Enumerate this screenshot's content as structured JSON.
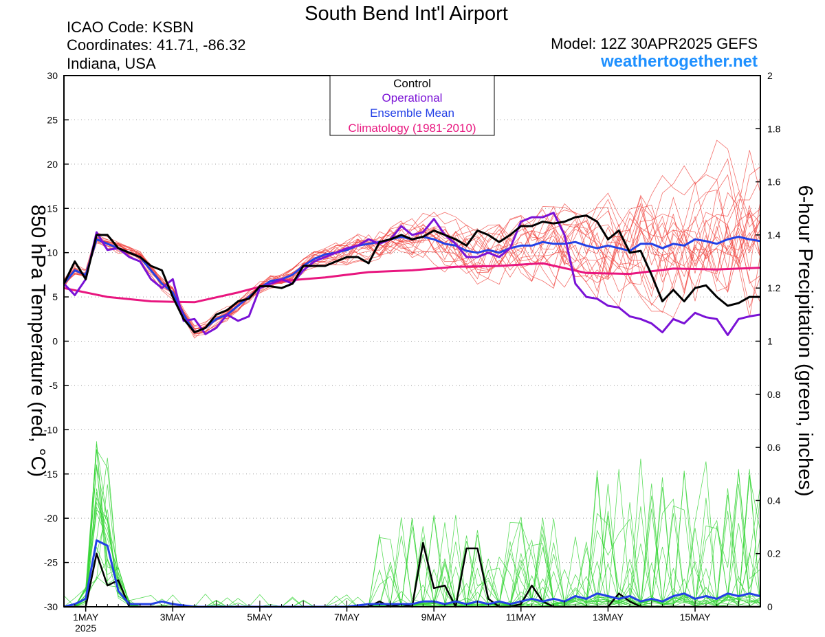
{
  "header": {
    "title": "South Bend Int'l Airport",
    "icao": "ICAO Code: KSBN",
    "coords": "Coordinates: 41.71, -86.32",
    "region": "Indiana, USA",
    "model": "Model: 12Z 30APR2025 GEFS",
    "site": "weathertogether.net"
  },
  "colors": {
    "control": "#000000",
    "operational": "#7a12d6",
    "ensemble_mean": "#2340e6",
    "climatology": "#e8167f",
    "members_temp": "#f0413c",
    "members_precip": "#33d433",
    "site": "#1e90ff"
  },
  "chart_data": {
    "type": "line",
    "x_unit": "days since 30APR2025 12Z",
    "xlim": [
      0,
      16
    ],
    "ylabel": "850 hPa Temperature (red, °C)",
    "y2label": "6-hour Precipitation (green, inches)",
    "ylim": [
      -30,
      30
    ],
    "y2lim": [
      0,
      2
    ],
    "yticks": [
      -30,
      -25,
      -20,
      -15,
      -10,
      -5,
      0,
      5,
      10,
      15,
      20,
      25,
      30
    ],
    "y2ticks": [
      "0",
      "0.2",
      "0.4",
      "0.6",
      "0.8",
      "1",
      "1.2",
      "1.4",
      "1.6",
      "1.8",
      "2"
    ],
    "y2tick_values": [
      0,
      0.2,
      0.4,
      0.6,
      0.8,
      1,
      1.2,
      1.4,
      1.6,
      1.8,
      2
    ],
    "xticks": [
      {
        "x": 0.5,
        "label": "1MAY",
        "sub": "2025"
      },
      {
        "x": 2.5,
        "label": "3MAY",
        "sub": ""
      },
      {
        "x": 4.5,
        "label": "5MAY",
        "sub": ""
      },
      {
        "x": 6.5,
        "label": "7MAY",
        "sub": ""
      },
      {
        "x": 8.5,
        "label": "9MAY",
        "sub": ""
      },
      {
        "x": 10.5,
        "label": "11MAY",
        "sub": ""
      },
      {
        "x": 12.5,
        "label": "13MAY",
        "sub": ""
      },
      {
        "x": 14.5,
        "label": "15MAY",
        "sub": ""
      }
    ],
    "legend": {
      "placement": "top-center",
      "entries": [
        {
          "label": "Control",
          "color": "#000000"
        },
        {
          "label": "Operational",
          "color": "#7a12d6"
        },
        {
          "label": "Ensemble Mean",
          "color": "#2340e6"
        },
        {
          "label": "Climatology (1981-2010)",
          "color": "#e8167f"
        }
      ]
    },
    "grid": true,
    "temperature": {
      "climatology": [
        [
          0,
          6
        ],
        [
          1,
          5
        ],
        [
          2,
          4.5
        ],
        [
          3,
          4.4
        ],
        [
          4,
          5.5
        ],
        [
          5,
          6.8
        ],
        [
          6,
          7.2
        ],
        [
          7,
          7.8
        ],
        [
          8,
          8
        ],
        [
          9,
          8.4
        ],
        [
          10,
          8.5
        ],
        [
          11,
          8.8
        ],
        [
          12,
          7.7
        ],
        [
          13,
          7.6
        ],
        [
          14,
          8.2
        ],
        [
          15,
          8.1
        ],
        [
          16,
          8.3
        ]
      ],
      "control": [
        [
          0,
          6.5
        ],
        [
          0.25,
          9
        ],
        [
          0.5,
          7
        ],
        [
          0.75,
          12
        ],
        [
          1,
          12
        ],
        [
          1.25,
          10.5
        ],
        [
          1.5,
          10
        ],
        [
          1.75,
          9.5
        ],
        [
          2,
          8.5
        ],
        [
          2.25,
          8
        ],
        [
          2.5,
          5
        ],
        [
          2.75,
          2.5
        ],
        [
          3,
          1
        ],
        [
          3.25,
          1.5
        ],
        [
          3.5,
          3
        ],
        [
          3.75,
          3.5
        ],
        [
          4,
          4.5
        ],
        [
          4.25,
          4.8
        ],
        [
          4.5,
          6.2
        ],
        [
          4.75,
          6.2
        ],
        [
          5,
          6
        ],
        [
          5.25,
          6.5
        ],
        [
          5.5,
          8.5
        ],
        [
          5.75,
          8.5
        ],
        [
          6,
          8.5
        ],
        [
          6.25,
          9
        ],
        [
          6.5,
          9.5
        ],
        [
          6.75,
          9.5
        ],
        [
          7,
          8.8
        ],
        [
          7.25,
          11.2
        ],
        [
          7.5,
          11.5
        ],
        [
          7.75,
          12
        ],
        [
          8,
          11.5
        ],
        [
          8.25,
          11.8
        ],
        [
          8.5,
          12.5
        ],
        [
          8.75,
          12
        ],
        [
          9,
          11.5
        ],
        [
          9.25,
          10.8
        ],
        [
          9.5,
          12.5
        ],
        [
          9.75,
          12
        ],
        [
          10,
          11.2
        ],
        [
          10.25,
          12
        ],
        [
          10.5,
          13
        ],
        [
          10.75,
          13
        ],
        [
          11,
          13.5
        ],
        [
          11.25,
          13.3
        ],
        [
          11.5,
          13.5
        ],
        [
          11.75,
          14
        ],
        [
          12,
          14.2
        ],
        [
          12.25,
          13.5
        ],
        [
          12.5,
          11.5
        ],
        [
          12.75,
          12.5
        ],
        [
          13,
          10
        ],
        [
          13.25,
          10.2
        ],
        [
          13.5,
          7.5
        ],
        [
          13.75,
          4.5
        ],
        [
          14,
          5.8
        ],
        [
          14.25,
          4.5
        ],
        [
          14.5,
          6
        ],
        [
          14.75,
          6.3
        ],
        [
          15,
          5
        ],
        [
          15.25,
          4
        ],
        [
          15.5,
          4.3
        ],
        [
          15.75,
          5
        ],
        [
          16,
          5
        ]
      ],
      "operational": [
        [
          0,
          6.5
        ],
        [
          0.25,
          5.2
        ],
        [
          0.5,
          7
        ],
        [
          0.75,
          12.3
        ],
        [
          1,
          10.3
        ],
        [
          1.25,
          10.5
        ],
        [
          1.5,
          9.5
        ],
        [
          1.75,
          9
        ],
        [
          2,
          7
        ],
        [
          2.25,
          6
        ],
        [
          2.5,
          7
        ],
        [
          2.75,
          2.3
        ],
        [
          3,
          2.5
        ],
        [
          3.25,
          0.8
        ],
        [
          3.5,
          1.5
        ],
        [
          3.75,
          3
        ],
        [
          4,
          2.3
        ],
        [
          4.25,
          2.8
        ],
        [
          4.5,
          6
        ],
        [
          4.75,
          6.5
        ],
        [
          5,
          7
        ],
        [
          5.25,
          6.5
        ],
        [
          5.5,
          8
        ],
        [
          5.75,
          9
        ],
        [
          6,
          9.5
        ],
        [
          6.25,
          10
        ],
        [
          6.5,
          10.5
        ],
        [
          6.75,
          10.8
        ],
        [
          7,
          11.5
        ],
        [
          7.25,
          11
        ],
        [
          7.5,
          11.5
        ],
        [
          7.75,
          13
        ],
        [
          8,
          12
        ],
        [
          8.25,
          12.3
        ],
        [
          8.5,
          13.8
        ],
        [
          8.75,
          12
        ],
        [
          9,
          11
        ],
        [
          9.25,
          9.5
        ],
        [
          9.5,
          9.5
        ],
        [
          9.75,
          10
        ],
        [
          10,
          9.5
        ],
        [
          10.25,
          10.5
        ],
        [
          10.5,
          13.5
        ],
        [
          10.75,
          14
        ],
        [
          11,
          14
        ],
        [
          11.25,
          14.5
        ],
        [
          11.5,
          12
        ],
        [
          11.75,
          6.5
        ],
        [
          12,
          5
        ],
        [
          12.25,
          4.8
        ],
        [
          12.5,
          4
        ],
        [
          12.75,
          3.8
        ],
        [
          13,
          2.8
        ],
        [
          13.25,
          2.5
        ],
        [
          13.5,
          2
        ],
        [
          13.75,
          1
        ],
        [
          14,
          2.5
        ],
        [
          14.25,
          2
        ],
        [
          14.5,
          3.2
        ],
        [
          14.75,
          2.7
        ],
        [
          15,
          2.5
        ],
        [
          15.25,
          0.7
        ],
        [
          15.5,
          2.5
        ],
        [
          15.75,
          2.8
        ],
        [
          16,
          3
        ]
      ],
      "ensemble_mean": [
        [
          0,
          6.5
        ],
        [
          0.25,
          8
        ],
        [
          0.5,
          7.5
        ],
        [
          0.75,
          11.5
        ],
        [
          1,
          11
        ],
        [
          1.25,
          10.5
        ],
        [
          1.5,
          10
        ],
        [
          1.75,
          9.5
        ],
        [
          2,
          8
        ],
        [
          2.25,
          6.5
        ],
        [
          2.5,
          5.5
        ],
        [
          2.75,
          3
        ],
        [
          3,
          1
        ],
        [
          3.25,
          1.5
        ],
        [
          3.5,
          2.5
        ],
        [
          3.75,
          3
        ],
        [
          4,
          4
        ],
        [
          4.25,
          5
        ],
        [
          4.5,
          6
        ],
        [
          4.75,
          6.8
        ],
        [
          5,
          7
        ],
        [
          5.25,
          7.5
        ],
        [
          5.5,
          8.5
        ],
        [
          5.75,
          9.3
        ],
        [
          6,
          9.8
        ],
        [
          6.25,
          10
        ],
        [
          6.5,
          10.3
        ],
        [
          6.75,
          10.8
        ],
        [
          7,
          11
        ],
        [
          7.25,
          11.2
        ],
        [
          7.5,
          11.5
        ],
        [
          7.75,
          11.8
        ],
        [
          8,
          11.5
        ],
        [
          8.25,
          11.8
        ],
        [
          8.5,
          11.5
        ],
        [
          8.75,
          11
        ],
        [
          9,
          10.8
        ],
        [
          9.25,
          10.2
        ],
        [
          9.5,
          10
        ],
        [
          9.75,
          10.3
        ],
        [
          10,
          10
        ],
        [
          10.25,
          10.5
        ],
        [
          10.5,
          10.8
        ],
        [
          10.75,
          10.8
        ],
        [
          11,
          11.2
        ],
        [
          11.25,
          11
        ],
        [
          11.5,
          11
        ],
        [
          11.75,
          11.2
        ],
        [
          12,
          10.8
        ],
        [
          12.25,
          10.5
        ],
        [
          12.5,
          10.8
        ],
        [
          12.75,
          10.5
        ],
        [
          13,
          10.2
        ],
        [
          13.25,
          11
        ],
        [
          13.5,
          11
        ],
        [
          13.75,
          10.5
        ],
        [
          14,
          11
        ],
        [
          14.25,
          10.8
        ],
        [
          14.5,
          11.5
        ],
        [
          14.75,
          11.3
        ],
        [
          15,
          11
        ],
        [
          15.25,
          11.5
        ],
        [
          15.5,
          11.8
        ],
        [
          15.75,
          11.5
        ],
        [
          16,
          11.3
        ]
      ]
    },
    "precipitation": {
      "control": [
        [
          0,
          0
        ],
        [
          0.5,
          0
        ],
        [
          0.75,
          0.2
        ],
        [
          1,
          0.08
        ],
        [
          1.25,
          0.1
        ],
        [
          1.5,
          0
        ],
        [
          2,
          0
        ],
        [
          3,
          0
        ],
        [
          4,
          0
        ],
        [
          5,
          0
        ],
        [
          6,
          0
        ],
        [
          7,
          0
        ],
        [
          7.25,
          0.02
        ],
        [
          7.5,
          0
        ],
        [
          7.75,
          0.01
        ],
        [
          8,
          0
        ],
        [
          8.25,
          0.24
        ],
        [
          8.5,
          0.07
        ],
        [
          8.75,
          0.08
        ],
        [
          9,
          0
        ],
        [
          9.25,
          0.22
        ],
        [
          9.5,
          0.22
        ],
        [
          9.75,
          0.03
        ],
        [
          10,
          0
        ],
        [
          10.25,
          0
        ],
        [
          10.5,
          0.01
        ],
        [
          10.75,
          0.08
        ],
        [
          11,
          0.02
        ],
        [
          11.25,
          0
        ],
        [
          11.5,
          0
        ],
        [
          12,
          0
        ],
        [
          12.5,
          0
        ],
        [
          12.75,
          0.05
        ],
        [
          13,
          0.02
        ],
        [
          13.25,
          0
        ],
        [
          13.5,
          0
        ],
        [
          14,
          0
        ],
        [
          15,
          0
        ],
        [
          16,
          0
        ]
      ],
      "ensemble_mean": [
        [
          0,
          0
        ],
        [
          0.25,
          0.01
        ],
        [
          0.5,
          0.03
        ],
        [
          0.75,
          0.25
        ],
        [
          1,
          0.23
        ],
        [
          1.25,
          0.06
        ],
        [
          1.5,
          0.01
        ],
        [
          2,
          0.01
        ],
        [
          2.25,
          0.02
        ],
        [
          2.5,
          0.01
        ],
        [
          3,
          0
        ],
        [
          4,
          0
        ],
        [
          5,
          0
        ],
        [
          6,
          0
        ],
        [
          6.5,
          0
        ],
        [
          7,
          0.01
        ],
        [
          7.5,
          0.01
        ],
        [
          8,
          0.01
        ],
        [
          8.25,
          0.02
        ],
        [
          8.5,
          0.02
        ],
        [
          8.75,
          0.01
        ],
        [
          9,
          0.02
        ],
        [
          9.25,
          0.01
        ],
        [
          9.5,
          0.02
        ],
        [
          9.75,
          0.01
        ],
        [
          10,
          0.02
        ],
        [
          10.25,
          0.01
        ],
        [
          10.5,
          0.02
        ],
        [
          10.75,
          0.03
        ],
        [
          11,
          0.02
        ],
        [
          11.25,
          0.03
        ],
        [
          11.5,
          0.02
        ],
        [
          11.75,
          0.04
        ],
        [
          12,
          0.03
        ],
        [
          12.25,
          0.05
        ],
        [
          12.5,
          0.04
        ],
        [
          12.75,
          0.03
        ],
        [
          13,
          0.04
        ],
        [
          13.25,
          0.02
        ],
        [
          13.5,
          0.03
        ],
        [
          13.75,
          0.02
        ],
        [
          14,
          0.04
        ],
        [
          14.25,
          0.05
        ],
        [
          14.5,
          0.03
        ],
        [
          14.75,
          0.04
        ],
        [
          15,
          0.03
        ],
        [
          15.25,
          0.05
        ],
        [
          15.5,
          0.04
        ],
        [
          15.75,
          0.05
        ],
        [
          16,
          0.04
        ]
      ]
    }
  }
}
